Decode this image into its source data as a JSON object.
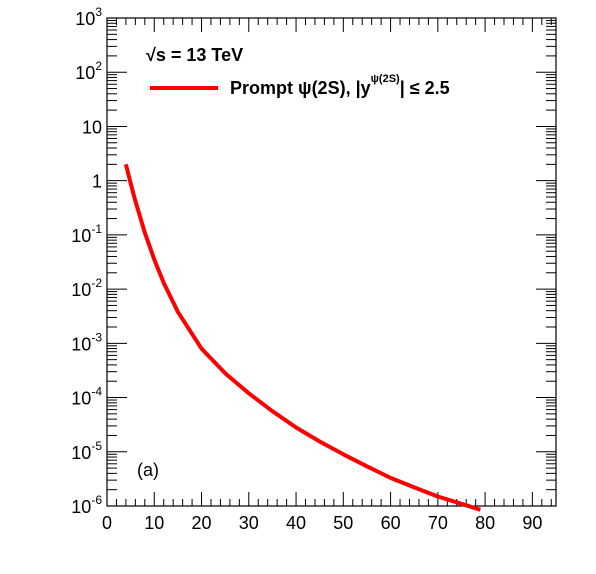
{
  "chart_data": {
    "type": "line",
    "xlim": [
      0,
      95
    ],
    "ylim": [
      1e-06,
      1000
    ],
    "y_scale": "log",
    "grid": false,
    "x_ticks": [
      0,
      10,
      20,
      30,
      40,
      50,
      60,
      70,
      80,
      90
    ],
    "y_ticks": [
      {
        "base": "10",
        "exp": "-6",
        "value": 1e-06
      },
      {
        "base": "10",
        "exp": "-5",
        "value": 1e-05
      },
      {
        "base": "10",
        "exp": "-4",
        "value": 0.0001
      },
      {
        "base": "10",
        "exp": "-3",
        "value": 0.001
      },
      {
        "base": "10",
        "exp": "-2",
        "value": 0.01
      },
      {
        "base": "10",
        "exp": "-1",
        "value": 0.1
      },
      {
        "base": "1",
        "exp": "",
        "value": 1
      },
      {
        "base": "10",
        "exp": "",
        "value": 10
      },
      {
        "base": "10",
        "exp": "2",
        "value": 100
      },
      {
        "base": "10",
        "exp": "3",
        "value": 1000
      }
    ],
    "series": [
      {
        "name": "Prompt ψ(2S), |y^ψ(2S)| ≤ 2.5",
        "color": "#ff0000",
        "x": [
          4,
          5,
          6,
          8,
          10,
          12,
          15,
          20,
          25,
          30,
          35,
          40,
          45,
          50,
          55,
          60,
          65,
          70,
          75,
          79
        ],
        "y": [
          2.0,
          0.9,
          0.42,
          0.11,
          0.035,
          0.013,
          0.0038,
          0.0008,
          0.00028,
          0.00012,
          5.6e-05,
          2.8e-05,
          1.55e-05,
          9e-06,
          5.4e-06,
          3.3e-06,
          2.2e-06,
          1.5e-06,
          1.1e-06,
          8.5e-07
        ]
      }
    ],
    "legend": {
      "placement": "top-left",
      "energy_text": "√s = 13 TeV",
      "entry_prefix": "Prompt  ψ(2S), |y",
      "entry_sup": "ψ(2S)",
      "entry_suffix": "| ≤ 2.5"
    },
    "panel_label": "(a)"
  }
}
